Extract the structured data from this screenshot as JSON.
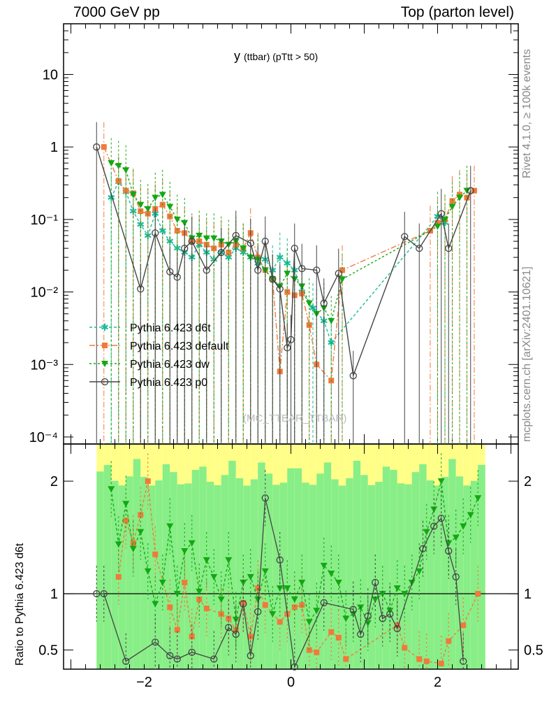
{
  "header": {
    "left": "7000 GeV pp",
    "right": "Top (parton level)",
    "observable_main": "y",
    "observable_rest": "(ttbar)  (pTtt > 50)"
  },
  "side_labels": {
    "rivet": "Rivet 4.1.0, ≥ 100k events",
    "mcplots": "mcplots.cern.ch [arXiv:2401.10621]"
  },
  "watermark": "(MC_TTBAR_TTBAR)",
  "colors": {
    "d6t": "#1abc9c",
    "default": "#f07a3a",
    "dw": "#13a813",
    "p0": "#444444",
    "band_inner": "#88ee88",
    "band_outer": "#ffff88"
  },
  "chart_data": {
    "type": "line",
    "main": {
      "y_scale": "log",
      "ylim": [
        8e-05,
        50
      ],
      "xlim": [
        -3.1,
        3.1
      ],
      "y_ticks": [
        "10",
        "1",
        "10⁻¹",
        "10⁻²",
        "10⁻³",
        "10⁻⁴"
      ],
      "legend_position": "middle-left",
      "series": [
        {
          "name": "Pythia 6.423 d6t",
          "key": "d6t",
          "marker": "star",
          "dash": "4,3",
          "points": [
            [
              -2.45,
              0.2
            ],
            [
              -2.35,
              0.33
            ],
            [
              -2.25,
              0.24
            ],
            [
              -2.15,
              0.13
            ],
            [
              -2.05,
              0.085
            ],
            [
              -1.95,
              0.06
            ],
            [
              -1.85,
              0.12
            ],
            [
              -1.75,
              0.07
            ],
            [
              -1.65,
              0.05
            ],
            [
              -1.55,
              0.04
            ],
            [
              -1.45,
              0.035
            ],
            [
              -1.35,
              0.03
            ],
            [
              -1.25,
              0.045
            ],
            [
              -1.15,
              0.035
            ],
            [
              -1.05,
              0.028
            ],
            [
              -0.95,
              0.035
            ],
            [
              -0.85,
              0.03
            ],
            [
              -0.75,
              0.04
            ],
            [
              -0.65,
              0.035
            ],
            [
              -0.55,
              0.03
            ],
            [
              -0.45,
              0.025
            ],
            [
              -0.35,
              0.028
            ],
            [
              -0.25,
              0.02
            ],
            [
              -0.15,
              0.03
            ],
            [
              -0.05,
              0.025
            ],
            [
              0.05,
              0.02
            ],
            [
              0.15,
              0.01
            ],
            [
              0.3,
              0.006
            ],
            [
              0.45,
              0.004
            ],
            [
              0.55,
              0.002
            ],
            [
              2.0,
              0.11
            ],
            [
              2.1,
              0.09
            ]
          ]
        },
        {
          "name": "Pythia 6.423 default",
          "key": "default",
          "marker": "square",
          "dash": "8,3,2,3",
          "points": [
            [
              -2.55,
              1.0
            ],
            [
              -2.35,
              0.34
            ],
            [
              -2.25,
              0.25
            ],
            [
              -2.15,
              0.23
            ],
            [
              -2.05,
              0.13
            ],
            [
              -1.95,
              0.12
            ],
            [
              -1.85,
              0.14
            ],
            [
              -1.75,
              0.16
            ],
            [
              -1.65,
              0.11
            ],
            [
              -1.55,
              0.07
            ],
            [
              -1.45,
              0.065
            ],
            [
              -1.35,
              0.05
            ],
            [
              -1.25,
              0.05
            ],
            [
              -1.15,
              0.045
            ],
            [
              -1.05,
              0.04
            ],
            [
              -0.95,
              0.045
            ],
            [
              -0.85,
              0.035
            ],
            [
              -0.75,
              0.045
            ],
            [
              -0.65,
              0.04
            ],
            [
              -0.55,
              0.065
            ],
            [
              -0.45,
              0.03
            ],
            [
              -0.35,
              0.02
            ],
            [
              -0.25,
              0.015
            ],
            [
              -0.15,
              0.0008
            ],
            [
              -0.05,
              0.01
            ],
            [
              0.05,
              0.009
            ],
            [
              0.15,
              0.0095
            ],
            [
              0.25,
              0.0035
            ],
            [
              0.35,
              0.001
            ],
            [
              0.55,
              0.0006
            ],
            [
              0.7,
              0.02
            ],
            [
              1.9,
              0.07
            ],
            [
              2.0,
              0.09
            ],
            [
              2.1,
              0.1
            ],
            [
              2.2,
              0.18
            ],
            [
              2.3,
              0.22
            ],
            [
              2.4,
              0.2
            ],
            [
              2.5,
              0.25
            ]
          ]
        },
        {
          "name": "Pythia 6.423 dw",
          "key": "dw",
          "marker": "triangle-down",
          "dash": "3,3",
          "points": [
            [
              -2.45,
              0.6
            ],
            [
              -2.35,
              0.55
            ],
            [
              -2.25,
              0.48
            ],
            [
              -2.15,
              0.22
            ],
            [
              -2.05,
              0.16
            ],
            [
              -1.95,
              0.14
            ],
            [
              -1.85,
              0.2
            ],
            [
              -1.75,
              0.22
            ],
            [
              -1.65,
              0.15
            ],
            [
              -1.55,
              0.1
            ],
            [
              -1.45,
              0.09
            ],
            [
              -1.35,
              0.055
            ],
            [
              -1.25,
              0.06
            ],
            [
              -1.15,
              0.055
            ],
            [
              -1.05,
              0.055
            ],
            [
              -0.95,
              0.05
            ],
            [
              -0.85,
              0.045
            ],
            [
              -0.75,
              0.05
            ],
            [
              -0.65,
              0.04
            ],
            [
              -0.55,
              0.03
            ],
            [
              -0.45,
              0.028
            ],
            [
              -0.35,
              0.02
            ],
            [
              -0.25,
              0.015
            ],
            [
              -0.15,
              0.012
            ],
            [
              -0.05,
              0.018
            ],
            [
              0.05,
              0.015
            ],
            [
              0.15,
              0.012
            ],
            [
              0.25,
              0.007
            ],
            [
              0.35,
              0.005
            ],
            [
              0.45,
              0.006
            ],
            [
              0.55,
              0.004
            ],
            [
              0.7,
              0.015
            ],
            [
              2.0,
              0.08
            ],
            [
              2.1,
              0.1
            ],
            [
              2.2,
              0.15
            ],
            [
              2.3,
              0.2
            ],
            [
              2.4,
              0.25
            ]
          ]
        },
        {
          "name": "Pythia 6.423 p0",
          "key": "p0",
          "marker": "circle-open",
          "dash": "",
          "points": [
            [
              -2.65,
              1.0
            ],
            [
              -2.05,
              0.011
            ],
            [
              -1.85,
              0.065
            ],
            [
              -1.65,
              0.019
            ],
            [
              -1.55,
              0.016
            ],
            [
              -1.45,
              0.04
            ],
            [
              -1.35,
              0.05
            ],
            [
              -1.15,
              0.02
            ],
            [
              -0.95,
              0.035
            ],
            [
              -0.75,
              0.06
            ],
            [
              -0.55,
              0.047
            ],
            [
              -0.45,
              0.02
            ],
            [
              -0.35,
              0.05
            ],
            [
              -0.25,
              0.015
            ],
            [
              -0.15,
              0.011
            ],
            [
              -0.05,
              0.0017
            ],
            [
              0.0,
              0.0022
            ],
            [
              0.05,
              0.04
            ],
            [
              0.15,
              0.021
            ],
            [
              0.35,
              0.02
            ],
            [
              0.45,
              0.007
            ],
            [
              0.65,
              0.018
            ],
            [
              0.85,
              0.0007
            ],
            [
              1.55,
              0.058
            ],
            [
              1.75,
              0.04
            ],
            [
              2.05,
              0.12
            ],
            [
              2.15,
              0.04
            ],
            [
              2.45,
              0.25
            ]
          ]
        }
      ]
    },
    "ratio": {
      "ylabel": "Ratio to Pythia 6.423 d6t",
      "ylim": [
        0.33,
        2.33
      ],
      "y_ticks": [
        "2",
        "1",
        "0.5"
      ],
      "x_ticks": [
        "−2",
        "0",
        "2"
      ],
      "reference": 1,
      "series": [
        {
          "key": "default",
          "points": [
            [
              -2.35,
              1.15
            ],
            [
              -2.25,
              1.65
            ],
            [
              -2.15,
              1.45
            ],
            [
              -2.05,
              1.7
            ],
            [
              -1.95,
              2.0
            ],
            [
              -1.85,
              1.35
            ],
            [
              -1.65,
              0.88
            ],
            [
              -1.55,
              0.68
            ],
            [
              -1.45,
              1.1
            ],
            [
              -1.35,
              0.62
            ],
            [
              -1.25,
              0.95
            ],
            [
              -1.15,
              0.87
            ],
            [
              -0.95,
              0.82
            ],
            [
              -0.85,
              0.78
            ],
            [
              -0.75,
              0.68
            ],
            [
              -0.65,
              0.92
            ],
            [
              -0.55,
              0.62
            ],
            [
              -0.45,
              1.05
            ],
            [
              -0.35,
              0.9
            ],
            [
              -0.15,
              0.75
            ],
            [
              -0.05,
              0.82
            ],
            [
              0.05,
              0.88
            ],
            [
              0.15,
              0.9
            ],
            [
              0.25,
              0.5
            ],
            [
              0.35,
              0.48
            ],
            [
              0.55,
              0.66
            ],
            [
              0.65,
              0.61
            ],
            [
              0.75,
              0.42
            ],
            [
              1.45,
              0.72
            ],
            [
              1.55,
              0.52
            ],
            [
              1.75,
              0.42
            ],
            [
              1.85,
              0.4
            ],
            [
              2.05,
              0.38
            ],
            [
              2.15,
              0.58
            ],
            [
              2.35,
              0.72
            ],
            [
              2.55,
              1.0
            ]
          ]
        },
        {
          "key": "dw",
          "points": [
            [
              -2.45,
              1.93
            ],
            [
              -2.35,
              1.44
            ],
            [
              -2.25,
              1.8
            ],
            [
              -2.15,
              1.4
            ],
            [
              -2.05,
              1.55
            ],
            [
              -1.95,
              1.2
            ],
            [
              -1.85,
              0.91
            ],
            [
              -1.75,
              1.1
            ],
            [
              -1.65,
              1.6
            ],
            [
              -1.55,
              1.0
            ],
            [
              -1.45,
              1.38
            ],
            [
              -1.35,
              1.45
            ],
            [
              -1.25,
              1.02
            ],
            [
              -1.15,
              1.3
            ],
            [
              -1.05,
              1.15
            ],
            [
              -0.95,
              0.95
            ],
            [
              -0.85,
              1.3
            ],
            [
              -0.75,
              0.77
            ],
            [
              -0.65,
              1.1
            ],
            [
              -0.55,
              1.15
            ],
            [
              -0.45,
              0.95
            ],
            [
              -0.35,
              1.2
            ],
            [
              -0.25,
              0.82
            ],
            [
              -0.15,
              1.05
            ],
            [
              -0.05,
              1.05
            ],
            [
              0.05,
              0.95
            ],
            [
              0.15,
              1.1
            ],
            [
              0.25,
              0.75
            ],
            [
              0.35,
              0.85
            ],
            [
              0.45,
              1.25
            ],
            [
              0.55,
              1.18
            ],
            [
              0.65,
              1.1
            ],
            [
              0.75,
              0.78
            ],
            [
              0.85,
              0.82
            ],
            [
              0.95,
              0.88
            ],
            [
              1.05,
              0.74
            ],
            [
              1.15,
              0.95
            ],
            [
              1.25,
              1.0
            ],
            [
              1.35,
              0.85
            ],
            [
              1.45,
              1.05
            ],
            [
              1.55,
              1.0
            ],
            [
              1.65,
              1.1
            ],
            [
              1.75,
              1.2
            ],
            [
              1.85,
              1.55
            ],
            [
              1.95,
              1.75
            ],
            [
              2.05,
              2.0
            ],
            [
              2.15,
              1.45
            ],
            [
              2.25,
              1.5
            ],
            [
              2.35,
              1.6
            ],
            [
              2.45,
              1.7
            ],
            [
              2.55,
              1.85
            ]
          ]
        },
        {
          "key": "p0",
          "points": [
            [
              -2.65,
              1.0
            ],
            [
              -2.55,
              1.0
            ],
            [
              -2.25,
              0.4
            ],
            [
              -1.85,
              0.57
            ],
            [
              -1.65,
              0.45
            ],
            [
              -1.55,
              0.42
            ],
            [
              -1.35,
              0.48
            ],
            [
              -1.05,
              0.42
            ],
            [
              -0.85,
              0.7
            ],
            [
              -0.75,
              0.64
            ],
            [
              -0.65,
              0.91
            ],
            [
              -0.55,
              0.45
            ],
            [
              -0.45,
              0.84
            ],
            [
              -0.35,
              1.85
            ],
            [
              -0.15,
              1.3
            ],
            [
              0.05,
              0.35
            ],
            [
              0.45,
              0.92
            ],
            [
              0.85,
              0.86
            ],
            [
              0.95,
              0.64
            ],
            [
              1.05,
              0.8
            ],
            [
              1.15,
              1.1
            ],
            [
              1.25,
              0.78
            ],
            [
              1.35,
              0.82
            ],
            [
              1.45,
              0.69
            ],
            [
              1.8,
              1.4
            ],
            [
              1.95,
              1.6
            ],
            [
              2.05,
              1.67
            ],
            [
              2.15,
              1.38
            ],
            [
              2.25,
              1.15
            ],
            [
              2.35,
              0.4
            ]
          ]
        }
      ]
    }
  }
}
